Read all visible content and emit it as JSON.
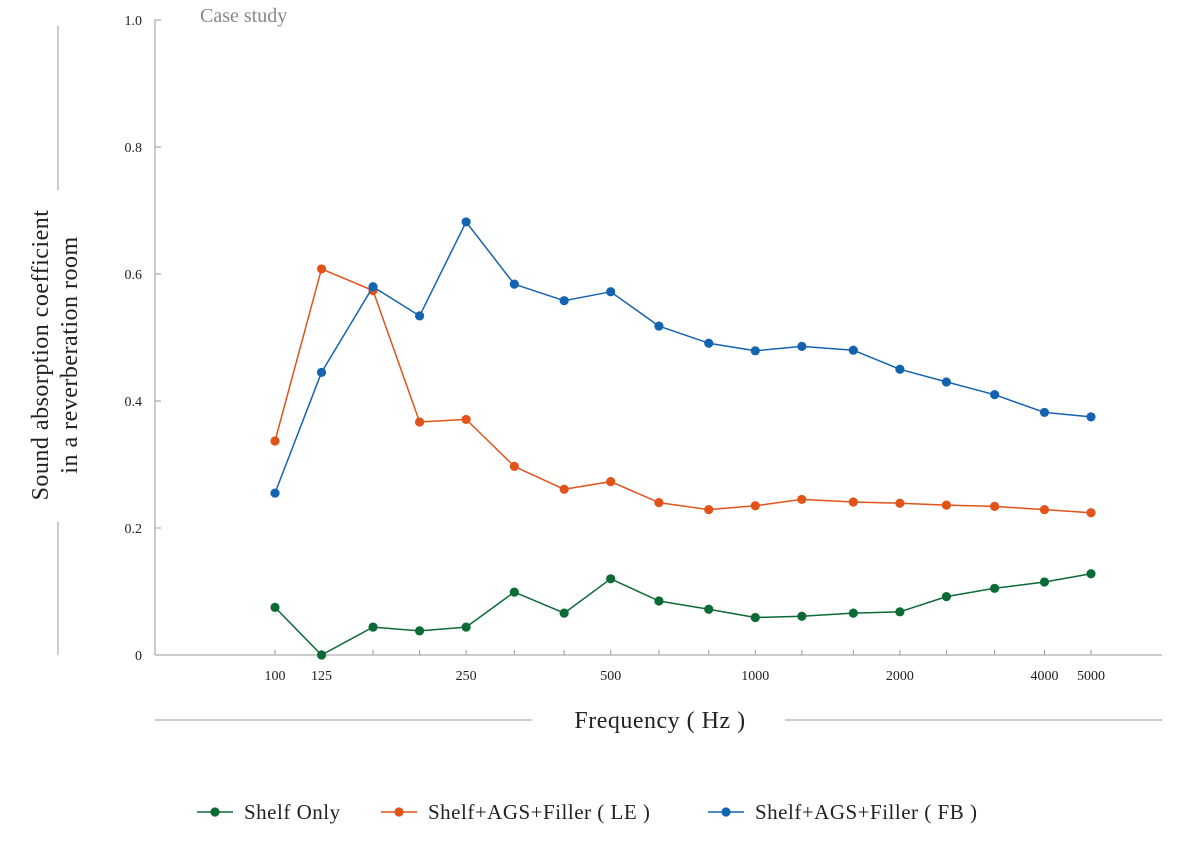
{
  "chart_data": {
    "type": "line",
    "title": "",
    "annotation": "Case study",
    "xlabel": "Frequency ( Hz )",
    "ylabel_lines": [
      "Sound absorption coefficient",
      "in a reverberation room"
    ],
    "x_scale": "log",
    "x": [
      100,
      125,
      160,
      200,
      250,
      315,
      400,
      500,
      630,
      800,
      1000,
      1250,
      1600,
      2000,
      2500,
      3150,
      4000,
      5000
    ],
    "x_tick_values": [
      100,
      125,
      250,
      500,
      1000,
      2000,
      4000,
      5000
    ],
    "x_tick_labels": [
      "100",
      "125",
      "250",
      "500",
      "1000",
      "2000",
      "4000",
      "5000"
    ],
    "ylim": [
      0,
      1.0
    ],
    "y_ticks": [
      0,
      0.2,
      0.4,
      0.6,
      0.8,
      1.0
    ],
    "y_tick_labels": [
      "0",
      "0.2",
      "0.4",
      "0.6",
      "0.8",
      "1.0"
    ],
    "grid": false,
    "legend_position": "bottom",
    "series": [
      {
        "name": "Shelf  Only",
        "color": "#0b6a35",
        "values": [
          0.075,
          0.0,
          0.044,
          0.038,
          0.044,
          0.099,
          0.066,
          0.12,
          0.085,
          0.072,
          0.059,
          0.061,
          0.066,
          0.068,
          0.092,
          0.105,
          0.115,
          0.128
        ]
      },
      {
        "name": "Shelf+AGS+Filler ( LE )",
        "color": "#e2531a",
        "values": [
          0.337,
          0.608,
          0.574,
          0.367,
          0.371,
          0.297,
          0.261,
          0.273,
          0.24,
          0.229,
          0.235,
          0.245,
          0.241,
          0.239,
          0.236,
          0.234,
          0.229,
          0.224
        ]
      },
      {
        "name": "Shelf+AGS+Filler ( FB )",
        "color": "#1463b0",
        "values": [
          0.255,
          0.445,
          0.58,
          0.534,
          0.682,
          0.584,
          0.558,
          0.572,
          0.518,
          0.491,
          0.479,
          0.486,
          0.48,
          0.45,
          0.43,
          0.41,
          0.382,
          0.375
        ]
      }
    ]
  }
}
